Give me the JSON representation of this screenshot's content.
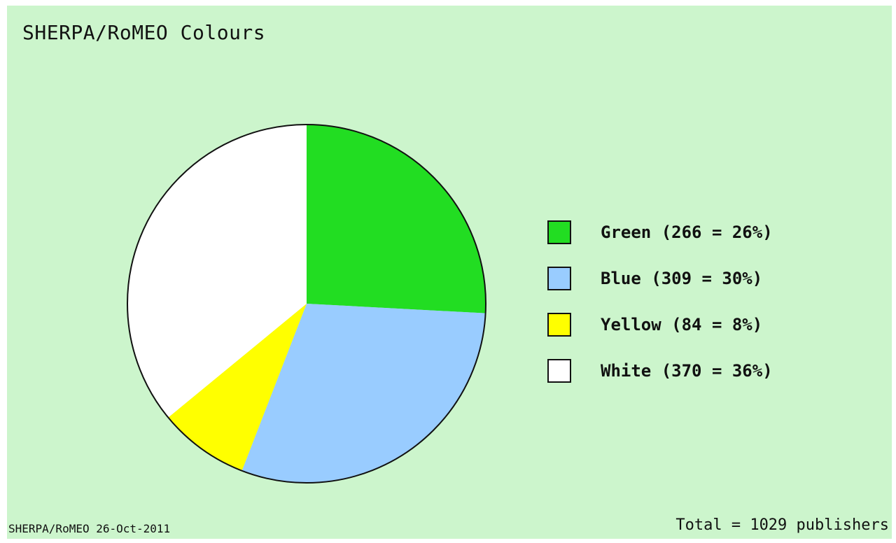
{
  "chart_data": {
    "type": "pie",
    "title": "SHERPA/RoMEO Colours",
    "series": [
      {
        "name": "Green",
        "value": 266,
        "percent": 26,
        "color": "#22dd22",
        "label": "Green (266 = 26%)"
      },
      {
        "name": "Blue",
        "value": 309,
        "percent": 30,
        "color": "#99ccff",
        "label": "Blue (309 = 30%)"
      },
      {
        "name": "Yellow",
        "value": 84,
        "percent": 8,
        "color": "#ffff00",
        "label": "Yellow (84 = 8%)"
      },
      {
        "name": "White",
        "value": 370,
        "percent": 36,
        "color": "#ffffff",
        "label": "White (370 = 36%)"
      }
    ],
    "start_angle_deg": 0,
    "direction": "clockwise",
    "legend_placement": "right",
    "footer_left": "SHERPA/RoMEO 26-Oct-2011",
    "footer_right": "Total = 1029 publishers"
  },
  "colors": {
    "background": "#ccf5cc",
    "outline": "#111111"
  }
}
